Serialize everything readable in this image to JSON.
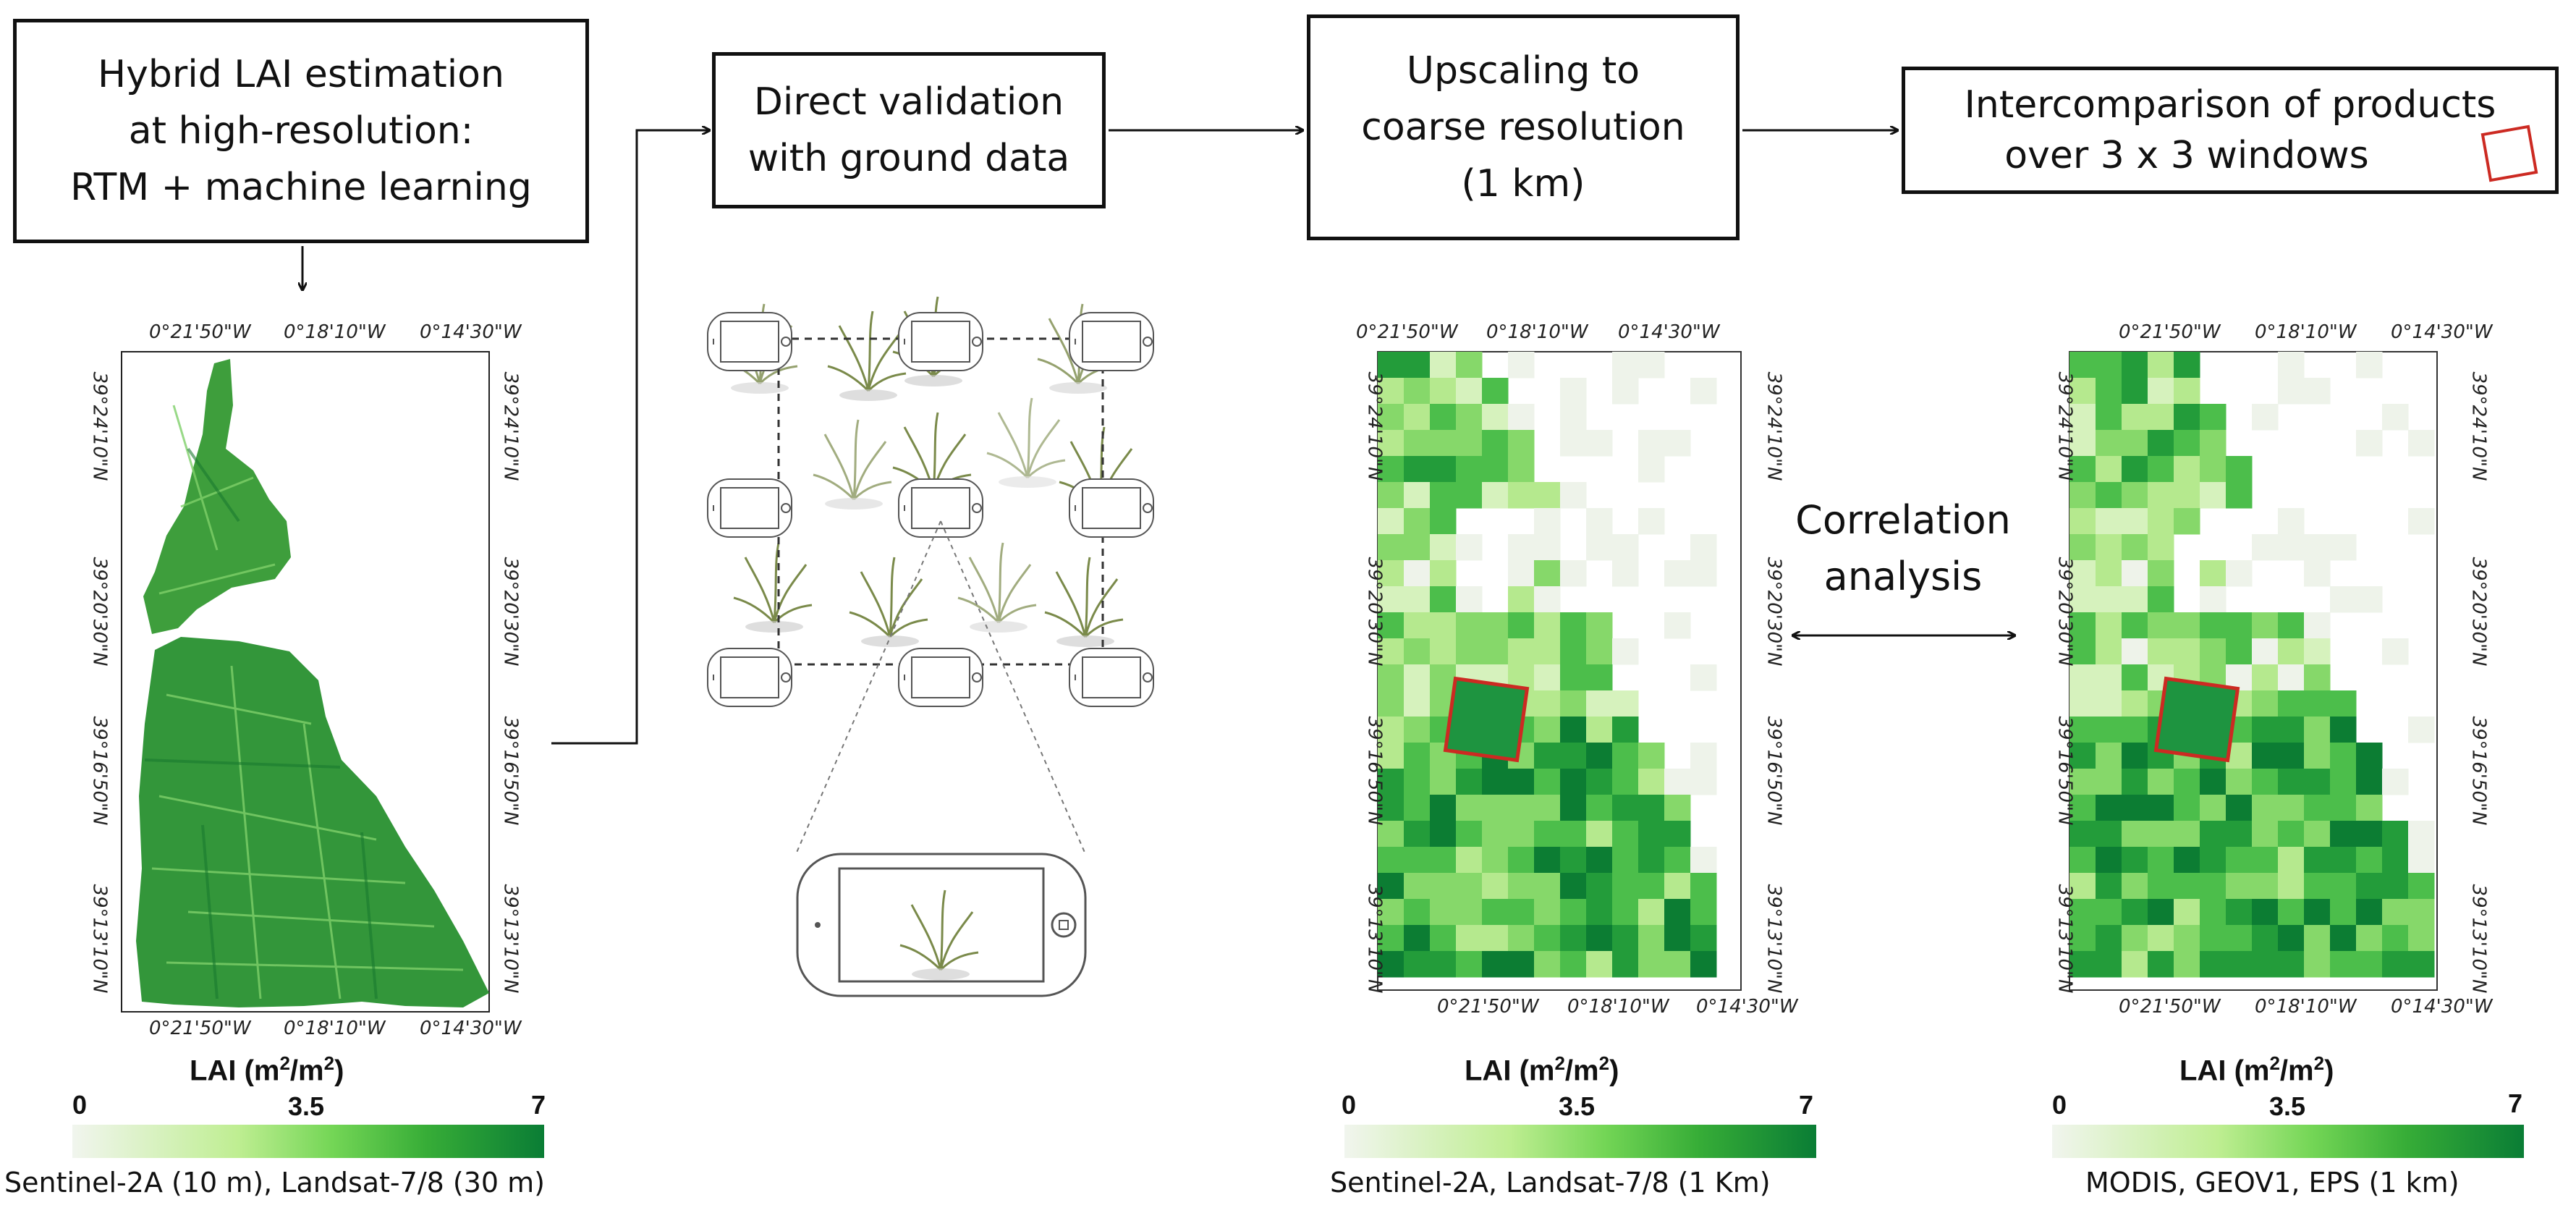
{
  "steps": [
    {
      "lines": [
        "Hybrid LAI estimation",
        "at high-resolution:",
        "RTM + machine learning"
      ]
    },
    {
      "lines": [
        "Direct validation",
        "with ground data"
      ]
    },
    {
      "lines": [
        "Upscaling to",
        "coarse resolution",
        "(1 km)"
      ]
    },
    {
      "lines": [
        "Intercomparison of products",
        "over 3 x 3  windows"
      ]
    }
  ],
  "correlation": {
    "line1": "Correlation",
    "line2": "analysis"
  },
  "map_ticks": {
    "top": [
      "0°21'50\"W",
      "0°18'10\"W",
      "0°14'30\"W"
    ],
    "bottom": [
      "0°21'50\"W",
      "0°18'10\"W",
      "0°14'30\"W"
    ],
    "left": [
      "39°24'10\"N",
      "39°20'30\"N",
      "39°16'50\"N",
      "39°13'10\"N"
    ],
    "right": [
      "39°24'10\"N",
      "39°20'30\"N",
      "39°16'50\"N",
      "39°13'10\"N"
    ]
  },
  "colorbar": {
    "title": "LAI",
    "unit": "(m",
    "unit_sup": "2",
    "unit_mid": "/m",
    "unit_sup2": "2",
    "unit_end": ")",
    "min": "0",
    "mid": "3.5",
    "max": "7"
  },
  "panels": [
    {
      "sensor": "Sentinel-2A (10 m), Landsat-7/8 (30 m)"
    },
    {
      "sensor": "Sentinel-2A, Landsat-7/8 (1 Km)"
    },
    {
      "sensor": "MODIS, GEOV1, EPS (1 km)"
    }
  ],
  "colors": {
    "lai_dark": "#0a7d35",
    "lai_light": "#c7ef9d",
    "window": "#cc2a22"
  }
}
